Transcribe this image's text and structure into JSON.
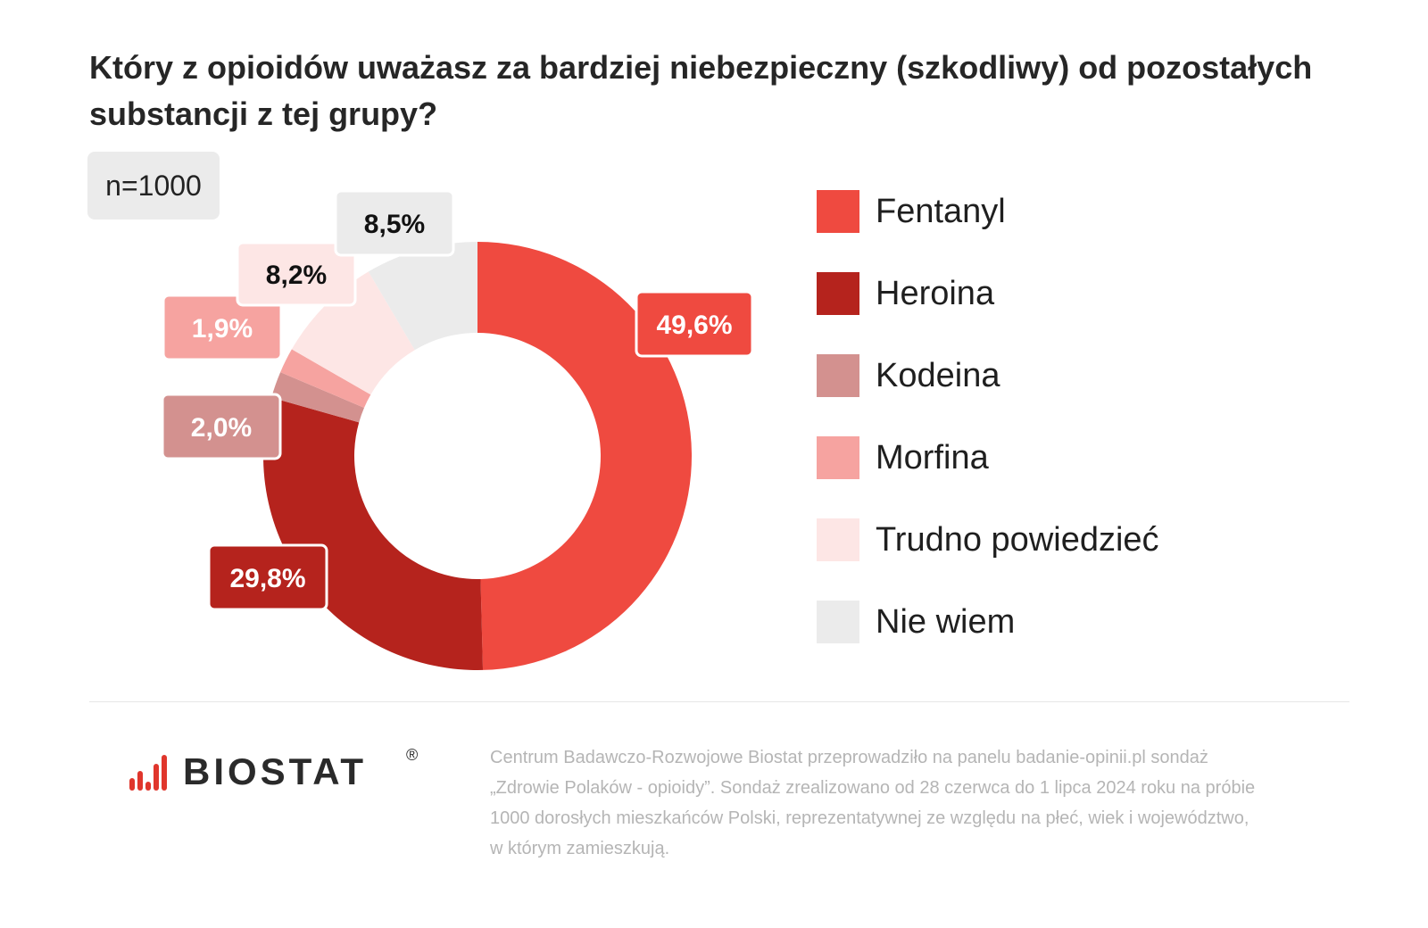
{
  "title": {
    "line1": "Który z opioidów uważasz za bardziej niebezpieczny (szkodliwy) od pozostałych",
    "line2": "substancji z tej grupy?"
  },
  "sample_label": "n=1000",
  "chart_data": {
    "type": "donut",
    "title": "Który z opioidów uważasz za bardziej niebezpieczny (szkodliwy) od pozostałych substancji z tej grupy?",
    "categories": [
      "Fentanyl",
      "Heroina",
      "Kodeina",
      "Morfina",
      "Trudno powiedzieć",
      "Nie wiem"
    ],
    "values": [
      49.6,
      29.8,
      2.0,
      1.9,
      8.2,
      8.5
    ],
    "value_labels": [
      "49,6%",
      "29,8%",
      "2,0%",
      "1,9%",
      "8,2%",
      "8,5%"
    ],
    "colors": [
      "#ef4a40",
      "#b5231d",
      "#d3918f",
      "#f6a3a0",
      "#fde6e5",
      "#ebebeb"
    ],
    "label_text_colors": [
      "#ffffff",
      "#ffffff",
      "#ffffff",
      "#ffffff",
      "#111111",
      "#111111"
    ],
    "start": "12 o'clock",
    "direction": "clockwise",
    "legend_position": "right"
  },
  "brand": {
    "name": "BIOSTAT",
    "registered_mark": "®",
    "accent_color": "#e0362c"
  },
  "footnote": {
    "line1": "Centrum Badawczo-Rozwojowe Biostat przeprowadziło na panelu badanie-opinii.pl sondaż",
    "line2": "„Zdrowie Polaków - opioidy”. Sondaż zrealizowano od 28 czerwca do 1 lipca 2024 roku na próbie",
    "line3": "1000 dorosłych mieszkańców Polski, reprezentatywnej ze względu na płeć, wiek i województwo,",
    "line4": "w którym zamieszkują."
  }
}
